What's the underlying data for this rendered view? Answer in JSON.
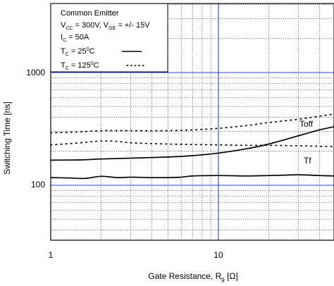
{
  "chart_data": {
    "type": "line",
    "xlabel": "Gate Resistance, R",
    "xlabel_sub": "g",
    "xlabel_unit": " [Ω]",
    "ylabel": "Switching Time [ns]",
    "x_scale": "log",
    "y_scale": "log",
    "xlim": [
      1,
      50
    ],
    "ylim": [
      30,
      4000
    ],
    "x_ticks": [
      {
        "value": 1,
        "label": "1"
      },
      {
        "value": 10,
        "label": "10"
      }
    ],
    "y_ticks": [
      {
        "value": 100,
        "label": "100"
      },
      {
        "value": 1000,
        "label": "1000"
      }
    ],
    "grid": true,
    "conditions": {
      "title": "Common Emitter",
      "vcc": {
        "main": "V",
        "sub": "CC",
        "rest": " = 300V, V"
      },
      "vge": {
        "sub": "GE",
        "rest": " = +/- 15V"
      },
      "ic": {
        "main": "I",
        "sub": "C",
        "rest": " = 50A"
      },
      "tc1": {
        "main": "T",
        "sub": "C",
        "mid": " = 25",
        "sup": "0",
        "rest": "C"
      },
      "tc2": {
        "main": "T",
        "sub": "C",
        "mid": " = 125",
        "sup": "0",
        "rest": "C"
      }
    },
    "legend_position": "top-left",
    "series": [
      {
        "name": "Toff",
        "temperature": "25°C",
        "style": "solid",
        "x": [
          1,
          1.5,
          2,
          3,
          5,
          7,
          10,
          15,
          20,
          30,
          40,
          50
        ],
        "y": [
          167,
          168,
          171,
          174,
          178,
          183,
          193,
          212,
          232,
          275,
          310,
          333
        ]
      },
      {
        "name": "Toff",
        "temperature": "125°C",
        "style": "dotted",
        "x": [
          1,
          1.5,
          2,
          3,
          5,
          7,
          10,
          15,
          20,
          30,
          40,
          50
        ],
        "y": [
          292,
          298,
          305,
          305,
          305,
          310,
          320,
          340,
          360,
          385,
          410,
          430
        ]
      },
      {
        "name": "Tf",
        "temperature": "25°C",
        "style": "solid",
        "x": [
          1,
          1.3,
          1.6,
          2,
          2.5,
          3,
          4,
          5,
          6,
          7,
          10,
          15,
          20,
          25,
          30,
          40,
          50
        ],
        "y": [
          117,
          116,
          115,
          120,
          117,
          118,
          117,
          117,
          118,
          121,
          122,
          121,
          122,
          123,
          124,
          122,
          121
        ]
      },
      {
        "name": "Tf",
        "temperature": "125°C",
        "style": "dotted",
        "x": [
          1,
          1.5,
          2,
          2.5,
          3,
          5,
          7,
          10,
          15,
          20,
          30,
          40,
          50
        ],
        "y": [
          228,
          238,
          247,
          245,
          238,
          232,
          230,
          228,
          226,
          226,
          224,
          222,
          220
        ]
      }
    ],
    "annotations": [
      {
        "text": "Toff",
        "x": 40,
        "y": 375
      },
      {
        "text": "Tf",
        "x": 40,
        "y": 185
      }
    ]
  }
}
